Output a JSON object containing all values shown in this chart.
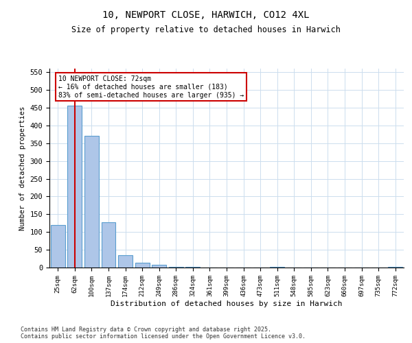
{
  "title1": "10, NEWPORT CLOSE, HARWICH, CO12 4XL",
  "title2": "Size of property relative to detached houses in Harwich",
  "xlabel": "Distribution of detached houses by size in Harwich",
  "ylabel": "Number of detached properties",
  "categories": [
    "25sqm",
    "62sqm",
    "100sqm",
    "137sqm",
    "174sqm",
    "212sqm",
    "249sqm",
    "286sqm",
    "324sqm",
    "361sqm",
    "399sqm",
    "436sqm",
    "473sqm",
    "511sqm",
    "548sqm",
    "585sqm",
    "623sqm",
    "660sqm",
    "697sqm",
    "735sqm",
    "772sqm"
  ],
  "values": [
    120,
    455,
    370,
    128,
    35,
    13,
    7,
    2,
    1,
    0,
    0,
    0,
    0,
    2,
    0,
    0,
    0,
    0,
    0,
    0,
    2
  ],
  "bar_color": "#aec6e8",
  "bar_edge_color": "#5a9ecf",
  "vline_x": 1,
  "vline_color": "#cc0000",
  "annotation_line1": "10 NEWPORT CLOSE: 72sqm",
  "annotation_line2": "← 16% of detached houses are smaller (183)",
  "annotation_line3": "83% of semi-detached houses are larger (935) →",
  "annotation_box_color": "#cc0000",
  "annotation_text_color": "#000000",
  "ylim": [
    0,
    560
  ],
  "yticks": [
    0,
    50,
    100,
    150,
    200,
    250,
    300,
    350,
    400,
    450,
    500,
    550
  ],
  "background_color": "#ffffff",
  "grid_color": "#ccddee",
  "footer1": "Contains HM Land Registry data © Crown copyright and database right 2025.",
  "footer2": "Contains public sector information licensed under the Open Government Licence v3.0."
}
